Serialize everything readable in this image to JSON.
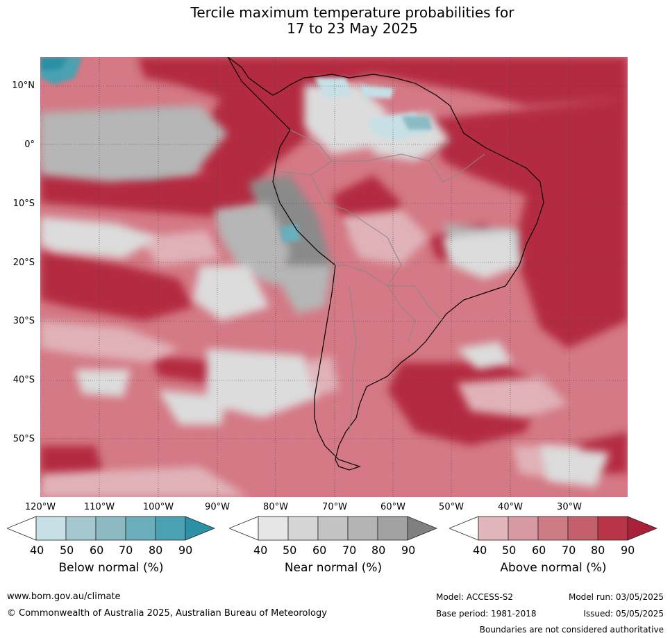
{
  "title": {
    "line1": "Tercile maximum temperature probabilities for",
    "line2": "17 to 23 May 2025"
  },
  "map": {
    "lat_labels": [
      "10°N",
      "0°",
      "10°S",
      "20°S",
      "30°S",
      "40°S",
      "50°S"
    ],
    "lon_labels": [
      "120°W",
      "110°W",
      "100°W",
      "90°W",
      "80°W",
      "70°W",
      "60°W",
      "50°W",
      "40°W",
      "30°W"
    ],
    "gridlines": true,
    "base_color": "#d47985"
  },
  "colorbars": [
    {
      "title": "Below normal (%)",
      "ticks": [
        "40",
        "50",
        "60",
        "70",
        "80",
        "90"
      ],
      "colors": [
        "#ffffff",
        "#c6e0e6",
        "#a5c8cf",
        "#8cbac3",
        "#6aaebb",
        "#4aa1b1",
        "#2c91a5"
      ]
    },
    {
      "title": "Near normal (%)",
      "ticks": [
        "40",
        "50",
        "60",
        "70",
        "80",
        "90"
      ],
      "colors": [
        "#ffffff",
        "#e6e6e6",
        "#d6d6d6",
        "#c4c4c4",
        "#b4b4b4",
        "#a2a2a2",
        "#808080"
      ]
    },
    {
      "title": "Above normal (%)",
      "ticks": [
        "40",
        "50",
        "60",
        "70",
        "80",
        "90"
      ],
      "colors": [
        "#ffffff",
        "#e0b6bb",
        "#d79aa2",
        "#cd7c86",
        "#c4606c",
        "#b83548",
        "#a8203a"
      ]
    }
  ],
  "footer": {
    "website": "www.bom.gov.au/climate",
    "copyright": "© Commonwealth of Australia 2025, Australian Bureau of Meteorology",
    "model": "Model: ACCESS-S2",
    "base_period": "Base period: 1981-2018",
    "model_run": "Model run: 03/05/2025",
    "issued": "Issued: 05/05/2025",
    "disclaimer": "Boundaries are not considered authoritative"
  }
}
